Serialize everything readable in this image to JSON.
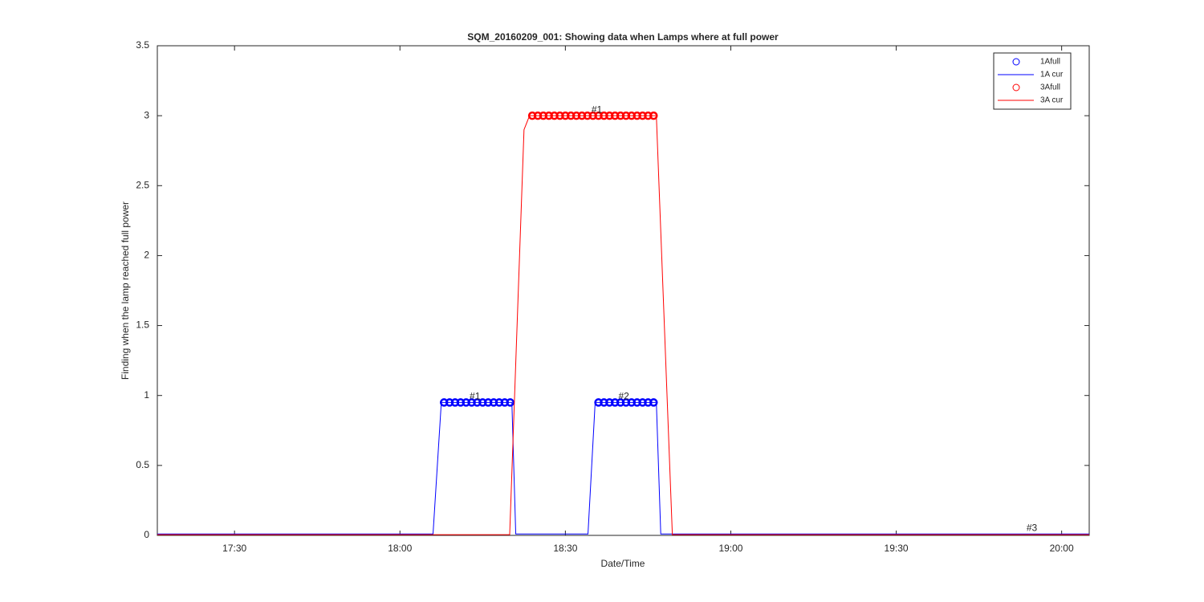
{
  "chart_data": {
    "type": "line",
    "title": "SQM_20160209_001: Showing data when Lamps where at full power",
    "x_label": "Date/Time",
    "y_label": "Finding when the lamp reached full power",
    "xlim": [
      1036,
      1205
    ],
    "ylim": [
      0,
      3.5
    ],
    "xticks": [
      {
        "value": 1050,
        "label": "17:30"
      },
      {
        "value": 1080,
        "label": "18:00"
      },
      {
        "value": 1110,
        "label": "18:30"
      },
      {
        "value": 1140,
        "label": "19:00"
      },
      {
        "value": 1170,
        "label": "19:30"
      },
      {
        "value": 1200,
        "label": "20:00"
      }
    ],
    "yticks": [
      0,
      0.5,
      1,
      1.5,
      2,
      2.5,
      3,
      3.5
    ],
    "legend": "northeast",
    "series": [
      {
        "name": "1Afull",
        "color": "#0000ff",
        "kind": "scatter",
        "x": [
          1088,
          1089,
          1090,
          1091,
          1092,
          1093,
          1094,
          1095,
          1096,
          1097,
          1098,
          1099,
          1100,
          1116,
          1117,
          1118,
          1119,
          1120,
          1121,
          1122,
          1123,
          1124,
          1125,
          1126
        ],
        "values": [
          0.95,
          0.95,
          0.95,
          0.95,
          0.95,
          0.95,
          0.95,
          0.95,
          0.95,
          0.95,
          0.95,
          0.95,
          0.95,
          0.95,
          0.95,
          0.95,
          0.95,
          0.95,
          0.95,
          0.95,
          0.95,
          0.95,
          0.95,
          0.95
        ]
      },
      {
        "name": "1A cur",
        "color": "#0000ff",
        "kind": "line",
        "x": [
          1036,
          1086,
          1087.5,
          1100.3,
          1101,
          1114.1,
          1115.4,
          1126.5,
          1127.3,
          1205
        ],
        "values": [
          0.01,
          0.01,
          0.95,
          0.95,
          0.01,
          0.01,
          0.95,
          0.95,
          0.01,
          0.01
        ]
      },
      {
        "name": "3Afull",
        "color": "#ff0000",
        "kind": "scatter",
        "x": [
          1104,
          1105,
          1106,
          1107,
          1108,
          1109,
          1110,
          1111,
          1112,
          1113,
          1114,
          1115,
          1116,
          1117,
          1118,
          1119,
          1120,
          1121,
          1122,
          1123,
          1124,
          1125,
          1126
        ],
        "values": [
          3,
          3,
          3,
          3,
          3,
          3,
          3,
          3,
          3,
          3,
          3,
          3,
          3,
          3,
          3,
          3,
          3,
          3,
          3,
          3,
          3,
          3,
          3
        ]
      },
      {
        "name": "3A cur",
        "color": "#ff0000",
        "kind": "line",
        "x": [
          1036,
          1099.9,
          1102.5,
          1103.5,
          1126.5,
          1129.4,
          1205
        ],
        "values": [
          0.005,
          0.005,
          2.9,
          3,
          3,
          0.005,
          0.005
        ]
      }
    ],
    "annotations": [
      {
        "text": "#1",
        "x": 1093.6,
        "y": 0.99
      },
      {
        "text": "#2",
        "x": 1120.6,
        "y": 0.99
      },
      {
        "text": "#1",
        "x": 1115.7,
        "y": 3.04
      },
      {
        "text": "#3",
        "x": 1194.6,
        "y": 0.05
      }
    ]
  }
}
